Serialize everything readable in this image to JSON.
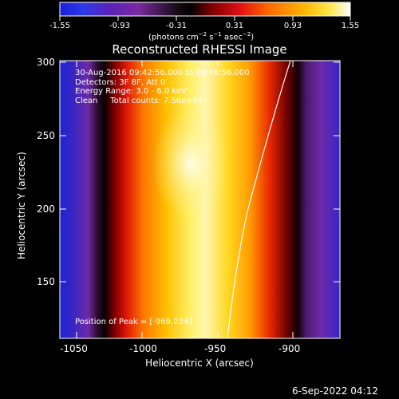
{
  "colorbar": {
    "tick_labels": [
      "-1.55",
      "-0.93",
      "-0.31",
      "0.31",
      "0.93",
      "1.55"
    ],
    "units_text": "(photons cm",
    "units_exp1": "−2",
    "units_mid": " s",
    "units_exp2": "−1",
    "units_mid2": " asec",
    "units_exp3": "−2",
    "units_end": ")",
    "range": [
      -1.55,
      1.55
    ]
  },
  "plot": {
    "title": "Reconstructed RHESSI Image",
    "info_lines": [
      "30-Aug-2016 09:42:56.000 to 09:48:56.000",
      "Detectors: 3F 8F, Att 0",
      "Energy Range: 3.0 - 6.0 keV",
      "Clean     Total counts: 7.56e+04"
    ],
    "peak_text": "Position of Peak = [-969,234]",
    "xlabel": "Heliocentric X (arcsec)",
    "ylabel": "Heliocentric Y (arcsec)",
    "x_ticks": [
      "-1050",
      "-1000",
      "-950",
      "-900"
    ],
    "y_ticks": [
      "300",
      "250",
      "200",
      "150"
    ],
    "x_range": [
      -1075,
      -867
    ],
    "y_range": [
      110,
      302
    ]
  },
  "footer": {
    "timestamp": "6-Sep-2022 04:12"
  },
  "colors": {
    "background": "#000000",
    "foreground": "#ffffff"
  }
}
